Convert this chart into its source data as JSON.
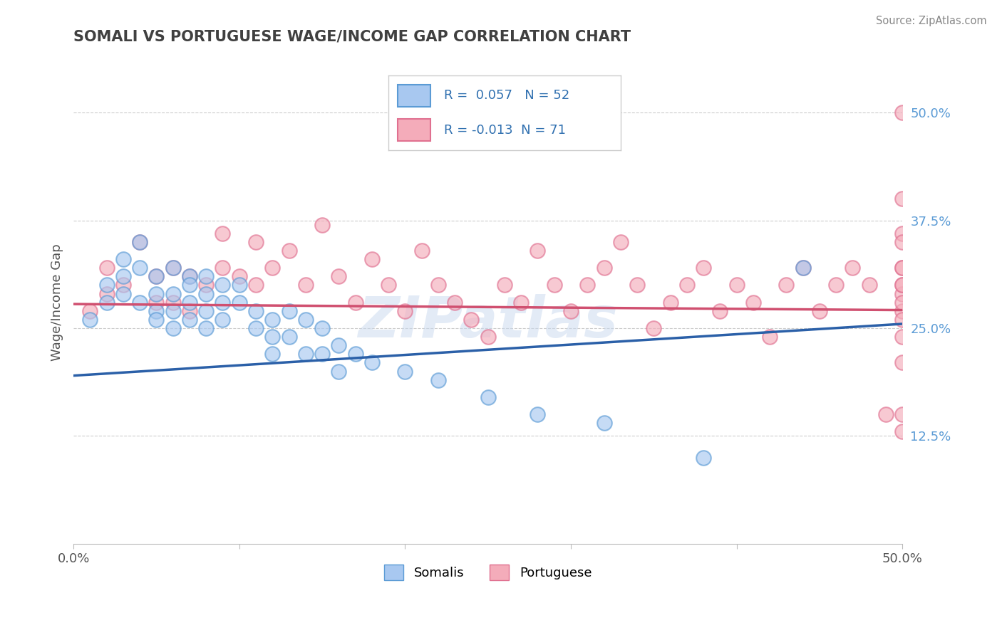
{
  "title": "SOMALI VS PORTUGUESE WAGE/INCOME GAP CORRELATION CHART",
  "source_text": "Source: ZipAtlas.com",
  "ylabel": "Wage/Income Gap",
  "xlim": [
    0.0,
    0.5
  ],
  "ylim": [
    0.0,
    0.56
  ],
  "yticks_right": [
    0.125,
    0.25,
    0.375,
    0.5
  ],
  "ytick_right_labels": [
    "12.5%",
    "25.0%",
    "37.5%",
    "50.0%"
  ],
  "somali_color": "#A8C8F0",
  "somali_edge": "#5B9BD5",
  "portuguese_color": "#F4ACBA",
  "portuguese_edge": "#E07090",
  "somali_line_color": "#2B60A8",
  "portuguese_line_color": "#D05070",
  "R_somali": 0.057,
  "N_somali": 52,
  "R_portuguese": -0.013,
  "N_portuguese": 71,
  "watermark": "ZIPatlas",
  "background_color": "#FFFFFF",
  "grid_color": "#CCCCCC",
  "title_color": "#404040",
  "legend_text_color": "#3070B0",
  "somali_x": [
    0.01,
    0.02,
    0.02,
    0.03,
    0.03,
    0.03,
    0.04,
    0.04,
    0.04,
    0.05,
    0.05,
    0.05,
    0.05,
    0.06,
    0.06,
    0.06,
    0.06,
    0.07,
    0.07,
    0.07,
    0.07,
    0.08,
    0.08,
    0.08,
    0.08,
    0.09,
    0.09,
    0.09,
    0.1,
    0.1,
    0.11,
    0.11,
    0.12,
    0.12,
    0.12,
    0.13,
    0.13,
    0.14,
    0.14,
    0.15,
    0.15,
    0.16,
    0.16,
    0.17,
    0.18,
    0.2,
    0.22,
    0.25,
    0.28,
    0.32,
    0.38,
    0.44
  ],
  "somali_y": [
    0.26,
    0.3,
    0.28,
    0.33,
    0.31,
    0.29,
    0.35,
    0.32,
    0.28,
    0.31,
    0.29,
    0.27,
    0.26,
    0.32,
    0.29,
    0.27,
    0.25,
    0.31,
    0.3,
    0.28,
    0.26,
    0.31,
    0.29,
    0.27,
    0.25,
    0.3,
    0.28,
    0.26,
    0.3,
    0.28,
    0.27,
    0.25,
    0.26,
    0.24,
    0.22,
    0.27,
    0.24,
    0.26,
    0.22,
    0.25,
    0.22,
    0.23,
    0.2,
    0.22,
    0.21,
    0.2,
    0.19,
    0.17,
    0.15,
    0.14,
    0.1,
    0.32
  ],
  "portuguese_x": [
    0.01,
    0.02,
    0.02,
    0.03,
    0.04,
    0.05,
    0.05,
    0.06,
    0.06,
    0.07,
    0.07,
    0.08,
    0.09,
    0.09,
    0.1,
    0.11,
    0.11,
    0.12,
    0.13,
    0.14,
    0.15,
    0.16,
    0.17,
    0.18,
    0.19,
    0.2,
    0.21,
    0.22,
    0.23,
    0.24,
    0.25,
    0.26,
    0.27,
    0.28,
    0.29,
    0.3,
    0.31,
    0.32,
    0.33,
    0.34,
    0.35,
    0.36,
    0.37,
    0.38,
    0.39,
    0.4,
    0.41,
    0.42,
    0.43,
    0.44,
    0.45,
    0.46,
    0.47,
    0.48,
    0.49,
    0.5,
    0.5,
    0.5,
    0.5,
    0.5,
    0.5,
    0.5,
    0.5,
    0.5,
    0.5,
    0.5,
    0.5,
    0.5,
    0.5,
    0.5,
    0.5
  ],
  "portuguese_y": [
    0.27,
    0.29,
    0.32,
    0.3,
    0.35,
    0.31,
    0.28,
    0.32,
    0.28,
    0.31,
    0.27,
    0.3,
    0.36,
    0.32,
    0.31,
    0.35,
    0.3,
    0.32,
    0.34,
    0.3,
    0.37,
    0.31,
    0.28,
    0.33,
    0.3,
    0.27,
    0.34,
    0.3,
    0.28,
    0.26,
    0.24,
    0.3,
    0.28,
    0.34,
    0.3,
    0.27,
    0.3,
    0.32,
    0.35,
    0.3,
    0.25,
    0.28,
    0.3,
    0.32,
    0.27,
    0.3,
    0.28,
    0.24,
    0.3,
    0.32,
    0.27,
    0.3,
    0.32,
    0.3,
    0.15,
    0.5,
    0.4,
    0.36,
    0.32,
    0.29,
    0.27,
    0.24,
    0.35,
    0.3,
    0.28,
    0.26,
    0.3,
    0.32,
    0.21,
    0.15,
    0.13
  ]
}
